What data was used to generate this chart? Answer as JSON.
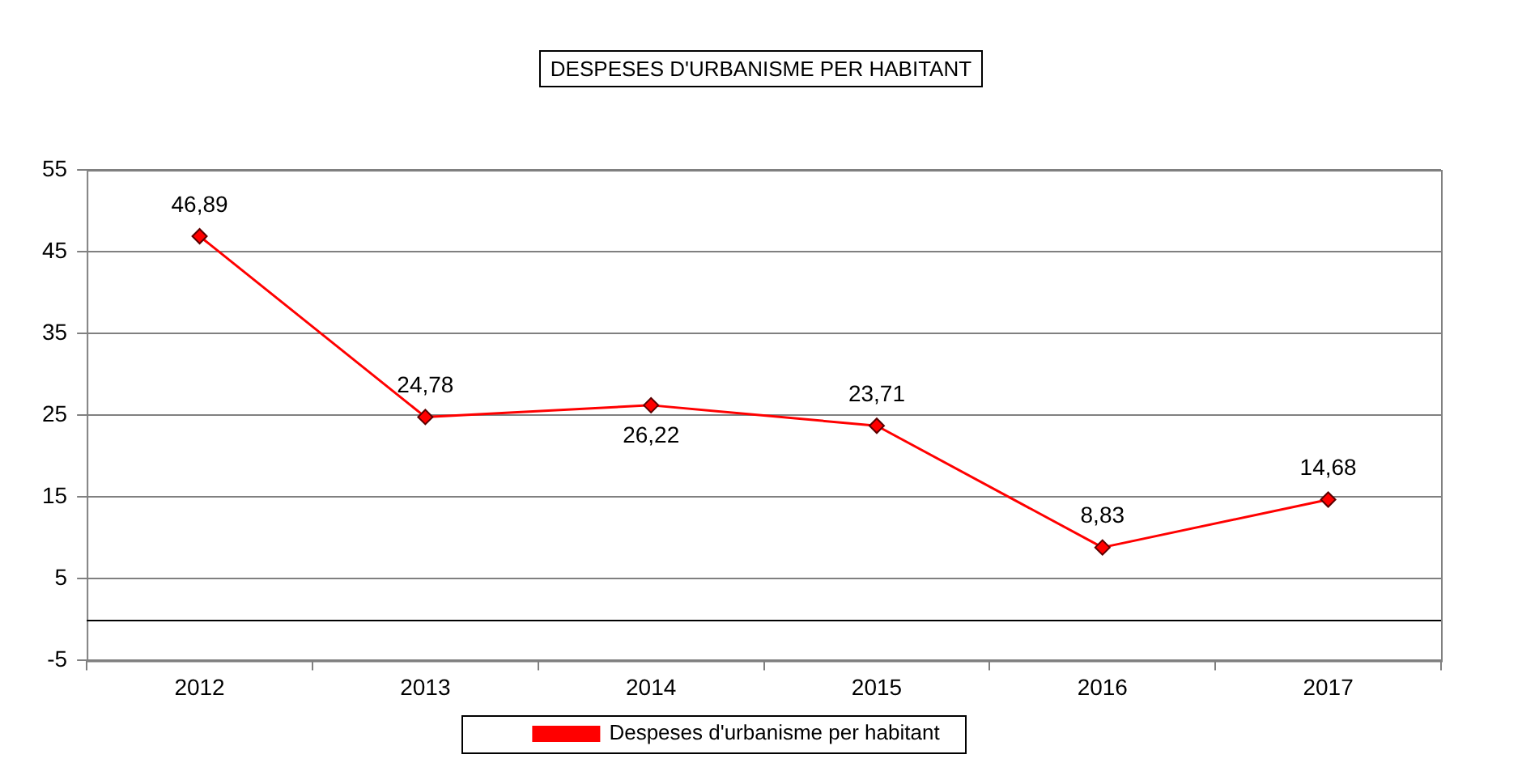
{
  "chart_data": {
    "type": "line",
    "title": "DESPESES D'URBANISME PER HABITANT",
    "categories": [
      "2012",
      "2013",
      "2014",
      "2015",
      "2016",
      "2017"
    ],
    "series": [
      {
        "name": "Despeses d'urbanisme per habitant",
        "color": "#ff0000",
        "values": [
          46.89,
          24.78,
          26.22,
          23.71,
          8.83,
          14.68
        ],
        "value_labels": [
          "46,89",
          "24,78",
          "26,22",
          "23,71",
          "8,83",
          "14,68"
        ]
      }
    ],
    "ylim": [
      -5,
      55
    ],
    "yticks": [
      -5,
      5,
      15,
      25,
      35,
      45,
      55
    ],
    "grid": "y",
    "legend": "bottom",
    "marker": "diamond",
    "line_style": "solid",
    "ref_lines": [
      {
        "axis": "y",
        "value": 0,
        "color": "#000000"
      }
    ]
  }
}
